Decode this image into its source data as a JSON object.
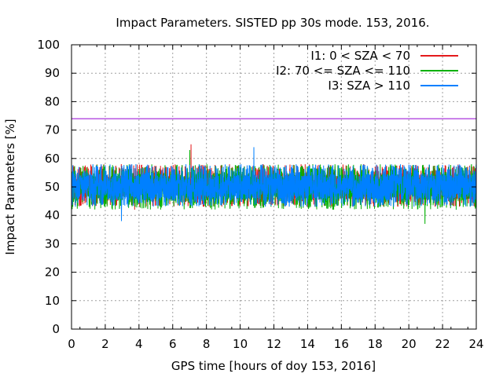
{
  "chart_data": {
    "type": "line",
    "title": "Impact Parameters. SISTED pp 30s mode. 153, 2016.",
    "xlabel": "GPS time [hours of doy 153, 2016]",
    "ylabel": "Impact Parameters [%]",
    "xlim": [
      0,
      24
    ],
    "ylim": [
      0,
      100
    ],
    "xticks": [
      "0",
      "2",
      "4",
      "6",
      "8",
      "10",
      "12",
      "14",
      "16",
      "18",
      "20",
      "22",
      "24"
    ],
    "yticks": [
      "0",
      "10",
      "20",
      "30",
      "40",
      "50",
      "60",
      "70",
      "80",
      "90",
      "100"
    ],
    "grid": true,
    "legend_position": "top-right",
    "series": [
      {
        "name": "I1: 0 < SZA < 70",
        "color": "#e41a1c",
        "baseline": 50,
        "typical_range": [
          43,
          58
        ],
        "max": 65,
        "min": 42
      },
      {
        "name": "I2: 70 <= SZA <= 110",
        "color": "#00b000",
        "baseline": 50,
        "typical_range": [
          42,
          58
        ],
        "max": 63,
        "min": 37
      },
      {
        "name": "I3: SZA > 110",
        "color": "#0080ff",
        "baseline": 50,
        "typical_range": [
          43,
          58
        ],
        "max": 64,
        "min": 38
      }
    ],
    "reference_line": {
      "y": 74,
      "color": "#9400d3"
    }
  }
}
